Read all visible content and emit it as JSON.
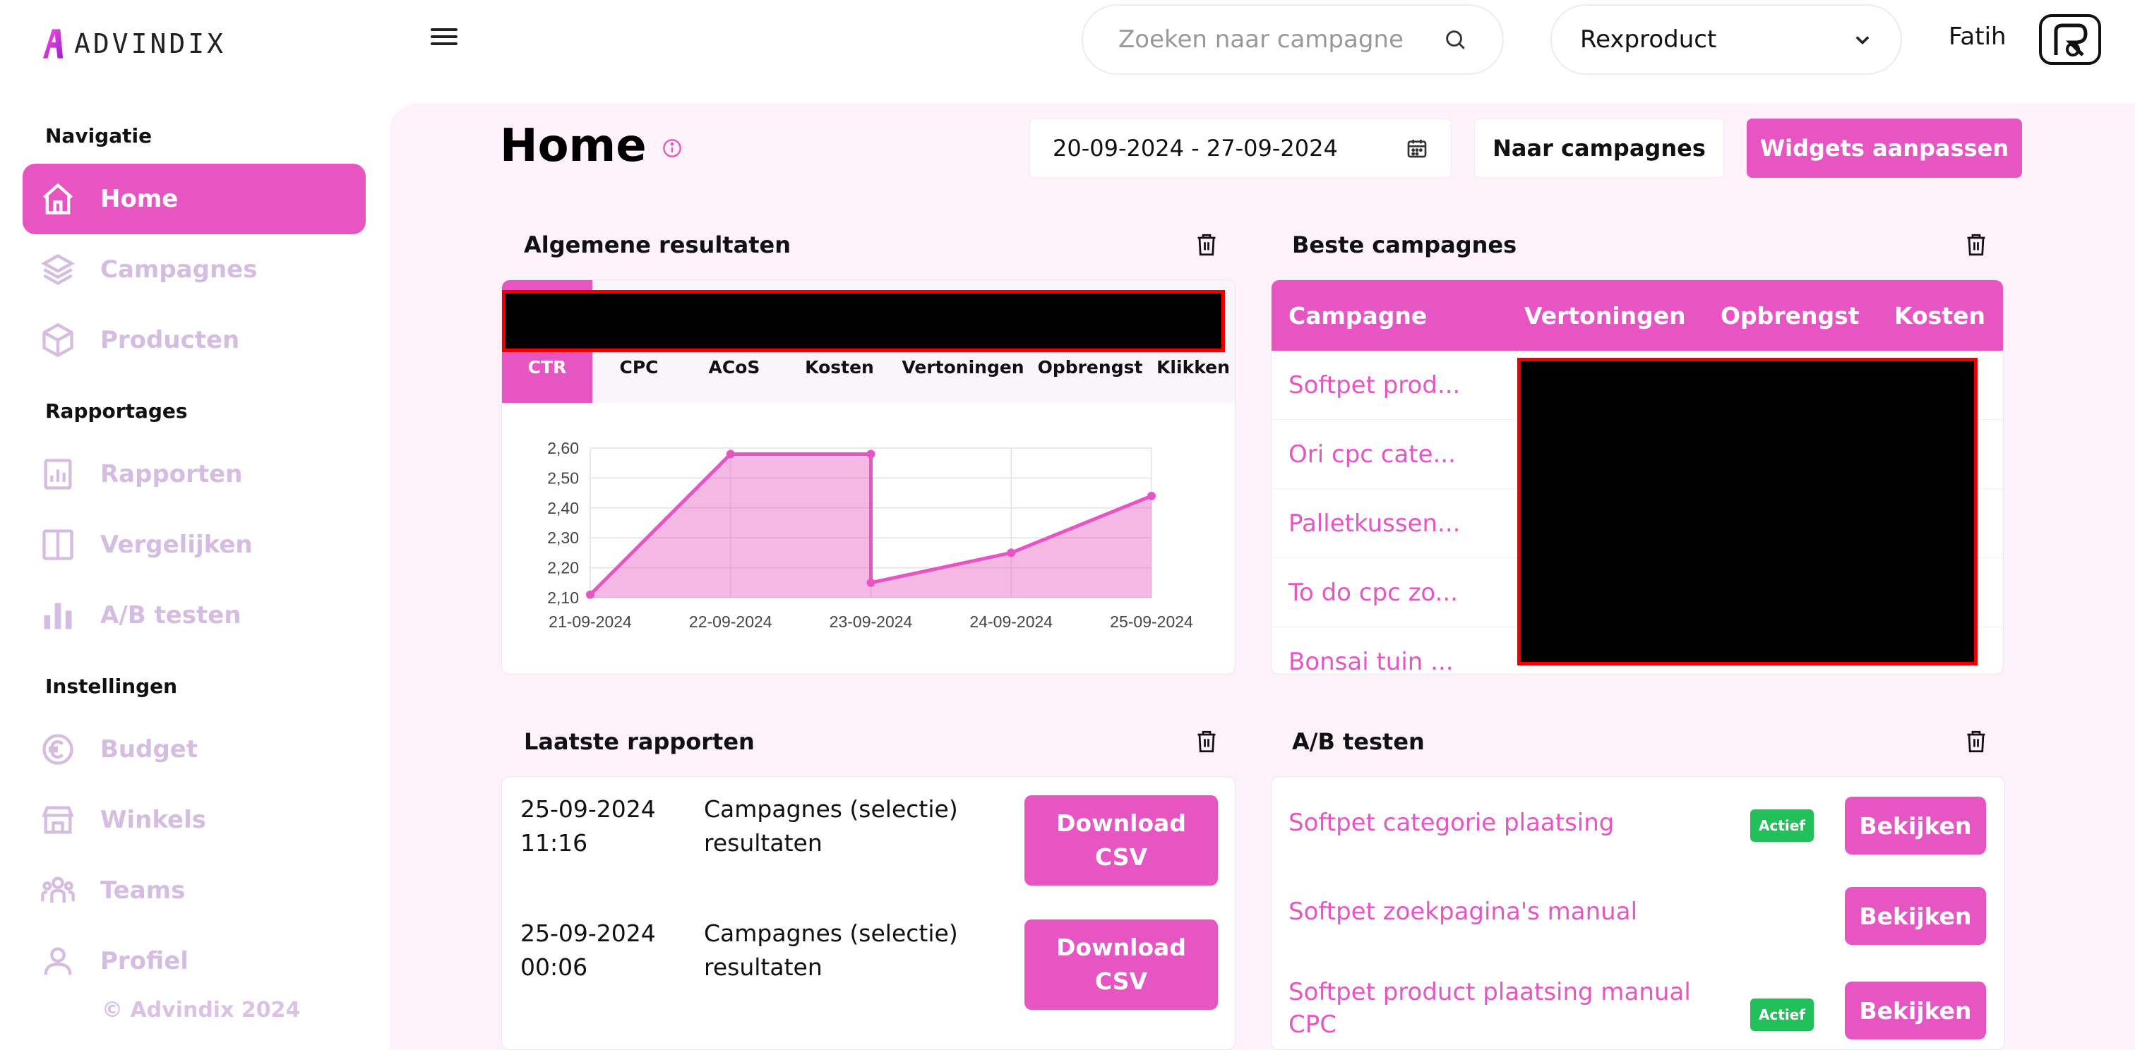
{
  "brand": {
    "name": "ADVINDIX",
    "accent": "#e655c2"
  },
  "topbar": {
    "search_placeholder": "Zoeken naar campagne",
    "product": "Rexproduct",
    "user": "Fatih"
  },
  "sidebar": {
    "section_nav": "Navigatie",
    "section_reports": "Rapportages",
    "section_settings": "Instellingen",
    "items": [
      {
        "label": "Home",
        "icon": "home-icon"
      },
      {
        "label": "Campagnes",
        "icon": "layers-icon"
      },
      {
        "label": "Producten",
        "icon": "box-icon"
      },
      {
        "label": "Rapporten",
        "icon": "report-icon"
      },
      {
        "label": "Vergelijken",
        "icon": "compare-icon"
      },
      {
        "label": "A/B testen",
        "icon": "bar-chart-icon"
      },
      {
        "label": "Budget",
        "icon": "euro-icon"
      },
      {
        "label": "Winkels",
        "icon": "store-icon"
      },
      {
        "label": "Teams",
        "icon": "teams-icon"
      },
      {
        "label": "Profiel",
        "icon": "user-icon"
      }
    ],
    "copyright": "© Advindix 2024"
  },
  "header": {
    "title": "Home",
    "date_range": "20-09-2024 - 27-09-2024",
    "btn_campaigns": "Naar campagnes",
    "btn_widgets": "Widgets aanpassen"
  },
  "widgets": {
    "general": {
      "title": "Algemene resultaten",
      "tabs": [
        "CTR",
        "CPC",
        "ACoS",
        "Kosten",
        "Vertoningen",
        "Opbrengst",
        "Klikken"
      ],
      "active_tab": "CTR"
    },
    "best": {
      "title": "Beste campagnes",
      "columns": [
        "Campagne",
        "Vertoningen",
        "Opbrengst",
        "Kosten"
      ],
      "rows": [
        "Softpet prod...",
        "Ori cpc cate...",
        "Palletkussen...",
        "To do cpc zo...",
        "Bonsai tuin ..."
      ]
    },
    "reports": {
      "title": "Laatste rapporten",
      "rows": [
        {
          "date": "25-09-2024",
          "time": "11:16",
          "desc1": "Campagnes (selectie)",
          "desc2": "resultaten",
          "btn1": "Download",
          "btn2": "CSV"
        },
        {
          "date": "25-09-2024",
          "time": "00:06",
          "desc1": "Campagnes (selectie)",
          "desc2": "resultaten",
          "btn1": "Download",
          "btn2": "CSV"
        }
      ]
    },
    "ab": {
      "title": "A/B testen",
      "rows": [
        {
          "name": "Softpet categorie plaatsing",
          "badge": "Actief",
          "btn": "Bekijken"
        },
        {
          "name": "Softpet zoekpagina's manual",
          "badge": "",
          "btn": "Bekijken"
        },
        {
          "name": "Softpet product plaatsing manual CPC",
          "badge": "Actief",
          "btn": "Bekijken"
        }
      ]
    }
  },
  "chart_data": {
    "type": "area",
    "x": [
      "21-09-2024",
      "22-09-2024",
      "23-09-2024",
      "23-09-2024",
      "24-09-2024",
      "25-09-2024"
    ],
    "x_ticks": [
      "21-09-2024",
      "22-09-2024",
      "23-09-2024",
      "24-09-2024",
      "25-09-2024"
    ],
    "y": [
      2.11,
      2.58,
      2.58,
      2.15,
      2.25,
      2.44
    ],
    "y_ticks": [
      "2,10",
      "2,20",
      "2,30",
      "2,40",
      "2,50",
      "2,60"
    ],
    "ylim": [
      2.1,
      2.6
    ],
    "grid": true,
    "color": "#e655c2"
  }
}
